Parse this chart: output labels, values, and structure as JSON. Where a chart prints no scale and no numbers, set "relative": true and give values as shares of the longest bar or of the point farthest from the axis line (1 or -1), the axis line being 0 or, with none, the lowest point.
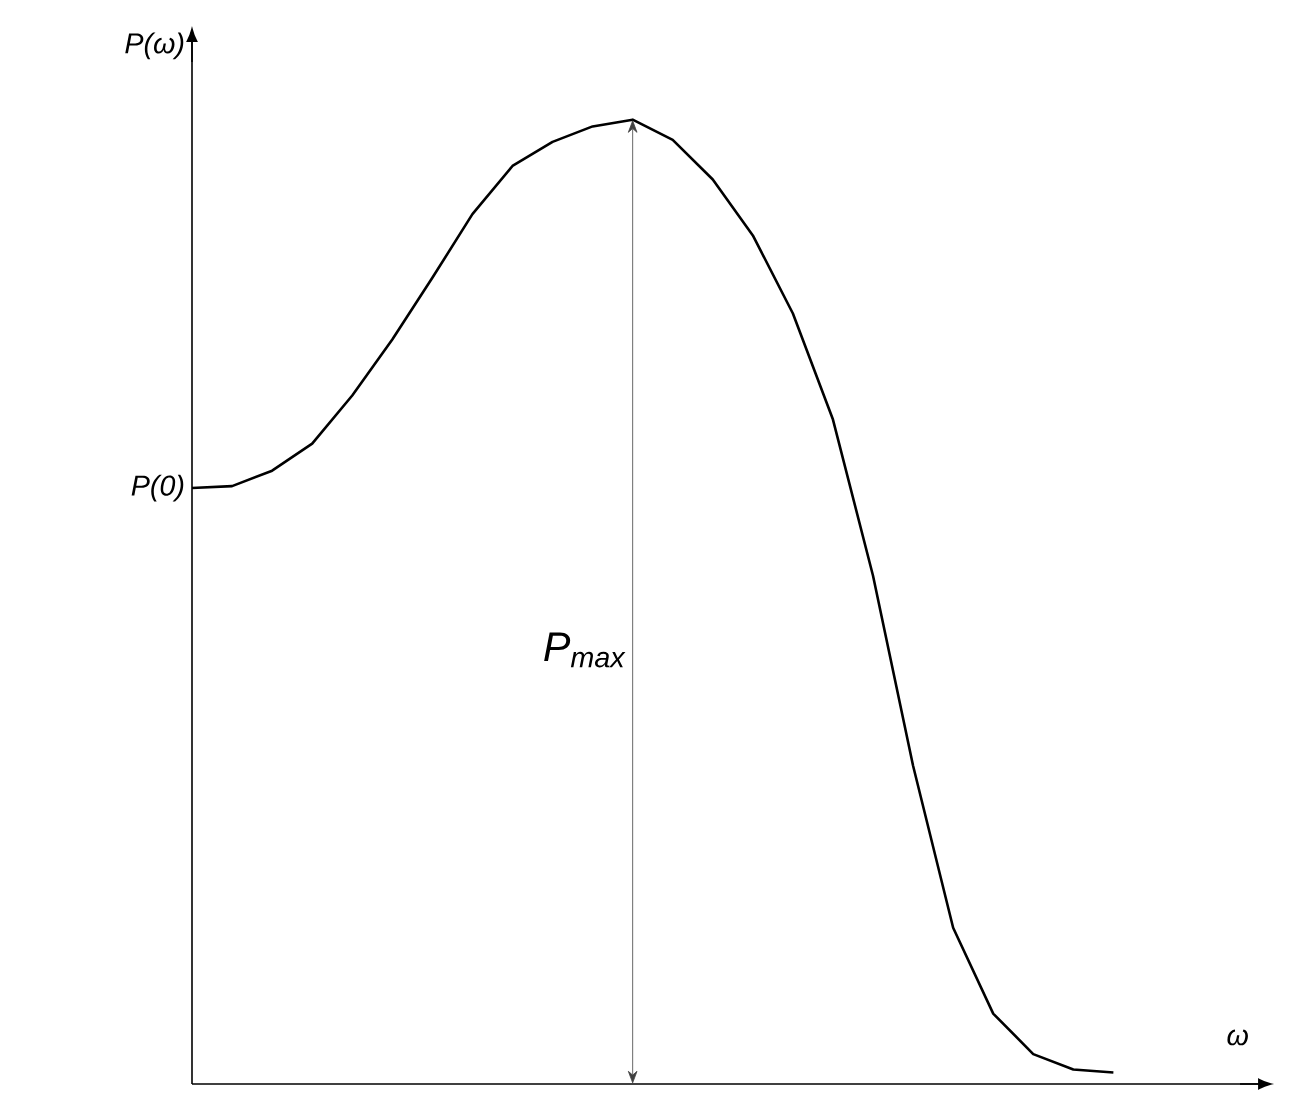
{
  "chart_data": {
    "type": "line",
    "relative": true,
    "ylabel": "P(ω)",
    "xlabel": "ω",
    "categories": [
      null,
      null,
      null,
      null,
      null,
      null,
      null,
      null,
      null,
      null,
      null,
      null,
      null,
      null,
      null,
      null,
      null,
      null,
      null,
      null,
      null,
      null,
      null,
      null
    ],
    "series": [
      {
        "color": "#000000",
        "values": [
          0.618,
          0.62,
          0.636,
          0.664,
          0.714,
          0.772,
          0.836,
          0.902,
          0.952,
          0.977,
          0.993,
          1,
          0.979,
          0.938,
          0.88,
          0.799,
          0.689,
          0.527,
          0.33,
          0.162,
          0.073,
          0.031,
          0.015,
          0.012
        ]
      }
    ],
    "annotations": [
      "P(0)",
      "P$_{max}$"
    ],
    "marker": "none",
    "line_style": "solid"
  }
}
